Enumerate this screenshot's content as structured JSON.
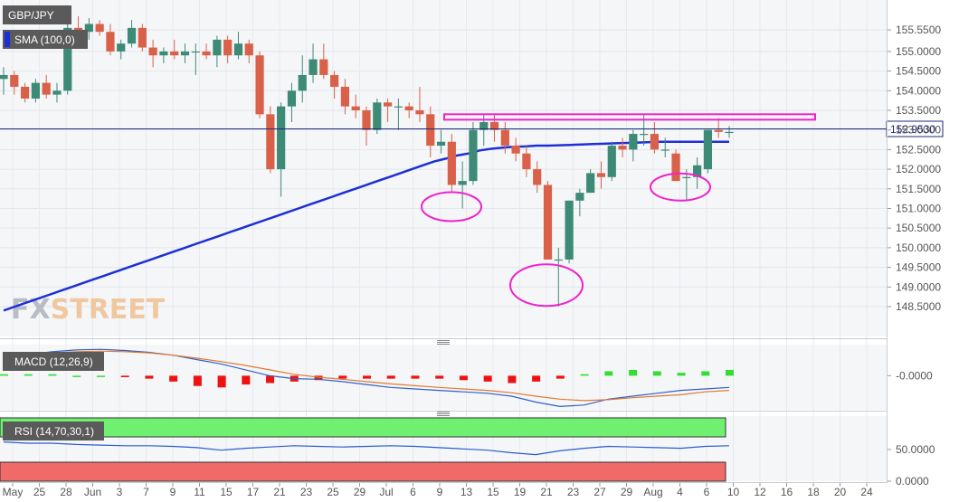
{
  "colors": {
    "up": "#3d8a76",
    "down": "#d9614a",
    "sma": "#1d2fd6",
    "macd": "#3060c8",
    "signal": "#e07a30",
    "hist_pos": "#33dd33",
    "hist_neg": "#ee1111",
    "rsi": "#2a5bd0",
    "rsi_over": "#70f070",
    "rsi_under": "#f06a6a",
    "annotation": "#ee22cc",
    "price_line": "#1a2a7a"
  },
  "chart": {
    "symbol": "GBP/JPY",
    "sma_label": "SMA (100,0)",
    "macd_label": "MACD (12,26,9)",
    "rsi_label": "RSI (14,70,30,1)",
    "current_price": "152.9530",
    "watermark": {
      "part1": "FX",
      "part2": "STREET"
    }
  },
  "chart_data": [
    {
      "type": "candlestick",
      "title": "GBP/JPY",
      "ylim": [
        148.2,
        155.85
      ],
      "y_ticks": [
        "155.5500",
        "155.0000",
        "154.5000",
        "154.0000",
        "153.5000",
        "153.0000",
        "152.5000",
        "152.0000",
        "151.5000",
        "151.0000",
        "150.5000",
        "150.0000",
        "149.5000",
        "149.0000",
        "148.5000"
      ],
      "y_tick_values": [
        155.55,
        155.0,
        154.5,
        154.0,
        153.5,
        153.0,
        152.5,
        152.0,
        151.5,
        151.0,
        150.5,
        150.0,
        149.5,
        149.0,
        148.5
      ],
      "x_ticks": [
        "May",
        "25",
        "28",
        "Jun",
        "3",
        "7",
        "9",
        "11",
        "15",
        "17",
        "21",
        "23",
        "25",
        "29",
        "Jul",
        "6",
        "9",
        "13",
        "15",
        "19",
        "21",
        "23",
        "27",
        "29",
        "Aug",
        "4",
        "6",
        "10",
        "12",
        "16",
        "18",
        "20",
        "24"
      ],
      "candles": [
        {
          "o": 154.3,
          "h": 154.6,
          "l": 153.9,
          "c": 154.4
        },
        {
          "o": 154.4,
          "h": 154.5,
          "l": 153.9,
          "c": 154.1
        },
        {
          "o": 154.1,
          "h": 154.2,
          "l": 153.7,
          "c": 153.8
        },
        {
          "o": 153.8,
          "h": 154.3,
          "l": 153.7,
          "c": 154.2
        },
        {
          "o": 154.2,
          "h": 154.4,
          "l": 153.8,
          "c": 153.9
        },
        {
          "o": 153.9,
          "h": 154.2,
          "l": 153.7,
          "c": 154.0
        },
        {
          "o": 154.0,
          "h": 155.7,
          "l": 153.9,
          "c": 155.6
        },
        {
          "o": 155.6,
          "h": 155.9,
          "l": 155.2,
          "c": 155.5
        },
        {
          "o": 155.5,
          "h": 155.85,
          "l": 155.3,
          "c": 155.7
        },
        {
          "o": 155.7,
          "h": 155.8,
          "l": 155.4,
          "c": 155.5
        },
        {
          "o": 155.5,
          "h": 155.7,
          "l": 154.9,
          "c": 155.0
        },
        {
          "o": 155.0,
          "h": 155.3,
          "l": 154.8,
          "c": 155.2
        },
        {
          "o": 155.2,
          "h": 155.8,
          "l": 155.1,
          "c": 155.6
        },
        {
          "o": 155.6,
          "h": 155.7,
          "l": 155.0,
          "c": 155.1
        },
        {
          "o": 155.1,
          "h": 155.3,
          "l": 154.6,
          "c": 154.9
        },
        {
          "o": 154.9,
          "h": 155.1,
          "l": 154.7,
          "c": 155.0
        },
        {
          "o": 155.0,
          "h": 155.3,
          "l": 154.8,
          "c": 154.9
        },
        {
          "o": 154.9,
          "h": 155.2,
          "l": 154.7,
          "c": 155.0
        },
        {
          "o": 155.0,
          "h": 155.2,
          "l": 154.4,
          "c": 155.0
        },
        {
          "o": 155.0,
          "h": 155.2,
          "l": 154.8,
          "c": 154.9
        },
        {
          "o": 154.9,
          "h": 155.4,
          "l": 154.6,
          "c": 155.3
        },
        {
          "o": 155.3,
          "h": 155.4,
          "l": 154.7,
          "c": 154.9
        },
        {
          "o": 154.9,
          "h": 155.5,
          "l": 154.8,
          "c": 155.2
        },
        {
          "o": 155.2,
          "h": 155.3,
          "l": 154.7,
          "c": 154.9
        },
        {
          "o": 154.9,
          "h": 155.0,
          "l": 153.3,
          "c": 153.4
        },
        {
          "o": 153.4,
          "h": 153.6,
          "l": 151.9,
          "c": 152.0
        },
        {
          "o": 152.0,
          "h": 153.7,
          "l": 151.3,
          "c": 153.6
        },
        {
          "o": 153.6,
          "h": 154.2,
          "l": 153.2,
          "c": 154.0
        },
        {
          "o": 154.0,
          "h": 154.9,
          "l": 153.7,
          "c": 154.4
        },
        {
          "o": 154.4,
          "h": 155.2,
          "l": 154.2,
          "c": 154.8
        },
        {
          "o": 154.8,
          "h": 155.2,
          "l": 154.3,
          "c": 154.4
        },
        {
          "o": 154.4,
          "h": 154.5,
          "l": 153.8,
          "c": 154.1
        },
        {
          "o": 154.1,
          "h": 154.3,
          "l": 153.4,
          "c": 153.6
        },
        {
          "o": 153.6,
          "h": 153.9,
          "l": 153.3,
          "c": 153.5
        },
        {
          "o": 153.5,
          "h": 153.6,
          "l": 152.6,
          "c": 153.0
        },
        {
          "o": 153.0,
          "h": 153.8,
          "l": 152.9,
          "c": 153.7
        },
        {
          "o": 153.7,
          "h": 153.8,
          "l": 153.2,
          "c": 153.6
        },
        {
          "o": 153.6,
          "h": 153.8,
          "l": 153.0,
          "c": 153.6
        },
        {
          "o": 153.6,
          "h": 153.7,
          "l": 153.3,
          "c": 153.5
        },
        {
          "o": 153.5,
          "h": 154.1,
          "l": 153.2,
          "c": 153.4
        },
        {
          "o": 153.4,
          "h": 153.6,
          "l": 152.3,
          "c": 152.6
        },
        {
          "o": 152.6,
          "h": 153.0,
          "l": 152.4,
          "c": 152.7
        },
        {
          "o": 152.7,
          "h": 152.9,
          "l": 151.4,
          "c": 151.6
        },
        {
          "o": 151.6,
          "h": 152.2,
          "l": 151.0,
          "c": 151.7
        },
        {
          "o": 151.7,
          "h": 153.2,
          "l": 151.6,
          "c": 153.0
        },
        {
          "o": 153.0,
          "h": 153.4,
          "l": 152.6,
          "c": 153.2
        },
        {
          "o": 153.2,
          "h": 153.4,
          "l": 152.7,
          "c": 153.0
        },
        {
          "o": 153.0,
          "h": 153.2,
          "l": 152.4,
          "c": 152.6
        },
        {
          "o": 152.6,
          "h": 152.8,
          "l": 152.2,
          "c": 152.4
        },
        {
          "o": 152.4,
          "h": 152.6,
          "l": 151.8,
          "c": 152.0
        },
        {
          "o": 152.0,
          "h": 152.2,
          "l": 151.4,
          "c": 151.6
        },
        {
          "o": 151.6,
          "h": 151.7,
          "l": 149.7,
          "c": 149.7
        },
        {
          "o": 149.7,
          "h": 150.0,
          "l": 148.5,
          "c": 149.7
        },
        {
          "o": 149.7,
          "h": 151.2,
          "l": 149.6,
          "c": 151.2
        },
        {
          "o": 151.2,
          "h": 151.5,
          "l": 150.8,
          "c": 151.4
        },
        {
          "o": 151.4,
          "h": 152.0,
          "l": 151.4,
          "c": 151.9
        },
        {
          "o": 151.9,
          "h": 152.2,
          "l": 151.5,
          "c": 151.8
        },
        {
          "o": 151.8,
          "h": 152.7,
          "l": 151.7,
          "c": 152.6
        },
        {
          "o": 152.6,
          "h": 152.8,
          "l": 152.3,
          "c": 152.5
        },
        {
          "o": 152.5,
          "h": 153.0,
          "l": 152.2,
          "c": 152.9
        },
        {
          "o": 152.9,
          "h": 153.4,
          "l": 152.6,
          "c": 152.9
        },
        {
          "o": 152.9,
          "h": 153.2,
          "l": 152.4,
          "c": 152.5
        },
        {
          "o": 152.5,
          "h": 152.8,
          "l": 152.3,
          "c": 152.5
        },
        {
          "o": 152.4,
          "h": 152.5,
          "l": 151.7,
          "c": 151.7
        },
        {
          "o": 151.8,
          "h": 152.0,
          "l": 151.2,
          "c": 151.8
        },
        {
          "o": 151.8,
          "h": 152.3,
          "l": 151.5,
          "c": 152.1
        },
        {
          "o": 152.0,
          "h": 153.0,
          "l": 151.9,
          "c": 153.0
        },
        {
          "o": 153.0,
          "h": 153.3,
          "l": 152.8,
          "c": 152.95
        },
        {
          "o": 152.95,
          "h": 153.1,
          "l": 152.8,
          "c": 152.95
        }
      ],
      "sma": [
        148.4,
        148.5,
        148.6,
        148.7,
        148.8,
        148.9,
        149.0,
        149.1,
        149.2,
        149.3,
        149.4,
        149.5,
        149.6,
        149.7,
        149.8,
        149.9,
        150.0,
        150.1,
        150.2,
        150.3,
        150.4,
        150.5,
        150.6,
        150.7,
        150.8,
        150.9,
        151.0,
        151.1,
        151.2,
        151.3,
        151.4,
        151.5,
        151.6,
        151.7,
        151.8,
        151.9,
        152.0,
        152.1,
        152.2,
        152.27,
        152.35,
        152.4,
        152.48,
        152.52,
        152.55,
        152.57,
        152.58,
        152.6,
        152.6,
        152.61,
        152.62,
        152.63,
        152.64,
        152.65,
        152.66,
        152.67,
        152.68,
        152.69,
        152.7,
        152.7,
        152.7,
        152.7,
        152.7,
        152.7,
        152.7
      ],
      "annotations": {
        "resistance_zone": [
          153.3,
          153.4
        ],
        "circled_lows": [
          151.0,
          149.0,
          151.5
        ]
      }
    },
    {
      "type": "line",
      "title": "MACD (12,26,9)",
      "y_ticks": [
        "-0.0000"
      ],
      "series": [
        {
          "name": "MACD",
          "values": [
            0.62,
            0.72,
            0.82,
            0.88,
            0.9,
            0.86,
            0.8,
            0.7,
            0.55,
            0.4,
            0.2,
            0.0,
            -0.1,
            -0.12,
            -0.2,
            -0.3,
            -0.4,
            -0.45,
            -0.5,
            -0.55,
            -0.6,
            -0.7,
            -0.9,
            -1.05,
            -1.0,
            -0.8,
            -0.7,
            -0.6,
            -0.5,
            -0.45,
            -0.4
          ]
        },
        {
          "name": "Signal",
          "values": [
            0.7,
            0.75,
            0.78,
            0.82,
            0.84,
            0.82,
            0.78,
            0.7,
            0.6,
            0.48,
            0.35,
            0.2,
            0.05,
            -0.05,
            -0.12,
            -0.2,
            -0.28,
            -0.34,
            -0.4,
            -0.45,
            -0.5,
            -0.58,
            -0.7,
            -0.8,
            -0.85,
            -0.82,
            -0.75,
            -0.7,
            -0.65,
            -0.55,
            -0.5
          ]
        }
      ],
      "histogram": [
        0.05,
        0.05,
        0.05,
        0.0,
        0.0,
        -0.05,
        -0.1,
        -0.2,
        -0.35,
        -0.4,
        -0.3,
        -0.25,
        -0.2,
        -0.15,
        -0.1,
        -0.1,
        -0.1,
        -0.1,
        -0.1,
        -0.15,
        -0.2,
        -0.25,
        -0.2,
        -0.1,
        0.05,
        0.15,
        0.2,
        0.15,
        0.1,
        0.15,
        0.2
      ]
    },
    {
      "type": "line",
      "title": "RSI (14,70,30,1)",
      "y_ticks": [
        "50.0000",
        "0.0000"
      ],
      "overbought": 70,
      "oversold": 30,
      "series": [
        {
          "name": "RSI",
          "values": [
            62,
            60,
            60,
            58,
            57,
            56,
            56,
            55,
            53,
            49,
            52,
            54,
            56,
            55,
            54,
            55,
            56,
            55,
            53,
            51,
            49,
            45,
            42,
            48,
            52,
            55,
            54,
            53,
            52,
            55,
            56
          ]
        }
      ]
    }
  ]
}
